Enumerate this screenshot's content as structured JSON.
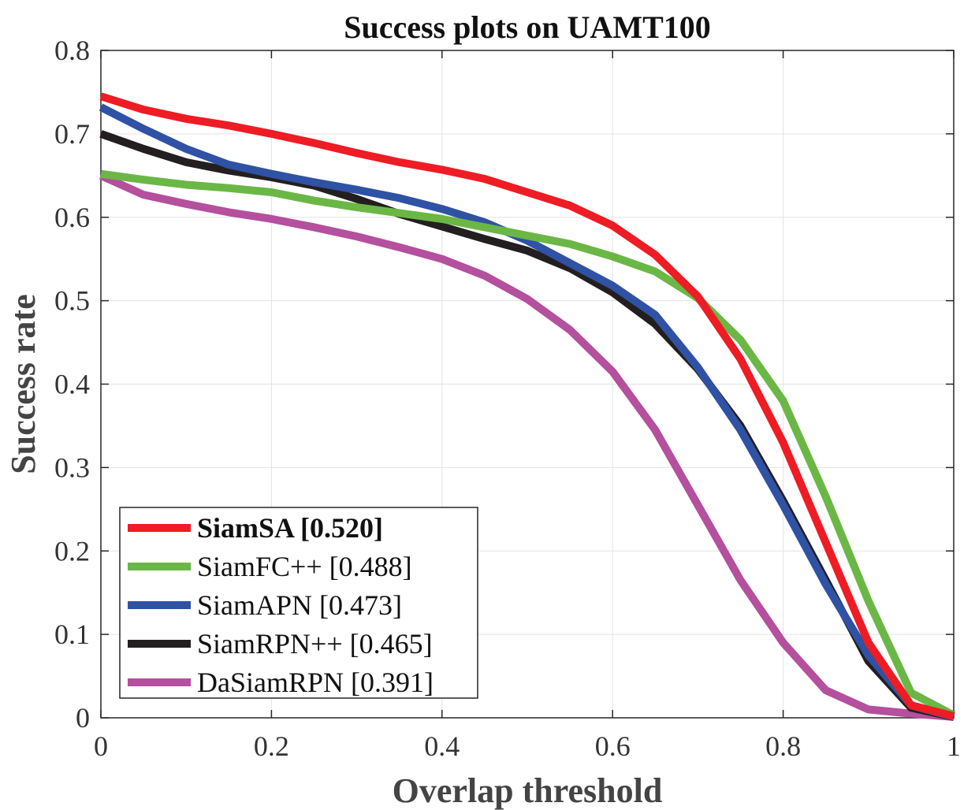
{
  "chart_data": {
    "type": "line",
    "title": "Success plots on UAMT100",
    "xlabel": "Overlap threshold",
    "ylabel": "Success rate",
    "xlim": [
      0,
      1
    ],
    "ylim": [
      0,
      0.8
    ],
    "xticks": [
      0,
      0.2,
      0.4,
      0.6,
      0.8,
      1
    ],
    "xtick_labels": [
      "0",
      "0.2",
      "0.4",
      "0.6",
      "0.8",
      "1"
    ],
    "yticks": [
      0,
      0.1,
      0.2,
      0.3,
      0.4,
      0.5,
      0.6,
      0.7,
      0.8
    ],
    "ytick_labels": [
      "0",
      "0.1",
      "0.2",
      "0.3",
      "0.4",
      "0.5",
      "0.6",
      "0.7",
      "0.8"
    ],
    "grid": true,
    "legend_position": "bottom-left",
    "x": [
      0,
      0.05,
      0.1,
      0.15,
      0.2,
      0.25,
      0.3,
      0.35,
      0.4,
      0.45,
      0.5,
      0.55,
      0.6,
      0.65,
      0.7,
      0.75,
      0.8,
      0.85,
      0.9,
      0.95,
      1
    ],
    "series": [
      {
        "name": "SiamSA [0.520]",
        "color": "#ee1c25",
        "bold": true,
        "values": [
          0.745,
          0.729,
          0.718,
          0.71,
          0.7,
          0.689,
          0.677,
          0.666,
          0.657,
          0.646,
          0.63,
          0.614,
          0.59,
          0.555,
          0.505,
          0.43,
          0.33,
          0.21,
          0.09,
          0.015,
          0.002
        ]
      },
      {
        "name": "SiamFC++ [0.488]",
        "color": "#6ab746",
        "bold": false,
        "values": [
          0.652,
          0.645,
          0.639,
          0.635,
          0.63,
          0.62,
          0.612,
          0.605,
          0.598,
          0.588,
          0.578,
          0.568,
          0.553,
          0.535,
          0.503,
          0.453,
          0.38,
          0.265,
          0.14,
          0.03,
          0.003
        ]
      },
      {
        "name": "SiamAPN [0.473]",
        "color": "#2f52a4",
        "bold": false,
        "values": [
          0.732,
          0.706,
          0.682,
          0.663,
          0.652,
          0.642,
          0.633,
          0.623,
          0.61,
          0.594,
          0.572,
          0.545,
          0.518,
          0.483,
          0.42,
          0.345,
          0.255,
          0.16,
          0.075,
          0.015,
          0.001
        ]
      },
      {
        "name": "SiamRPN++ [0.465]",
        "color": "#231f20",
        "bold": false,
        "values": [
          0.7,
          0.682,
          0.666,
          0.656,
          0.648,
          0.638,
          0.622,
          0.604,
          0.589,
          0.574,
          0.56,
          0.539,
          0.51,
          0.472,
          0.418,
          0.35,
          0.26,
          0.165,
          0.068,
          0.012,
          0.001
        ]
      },
      {
        "name": "DaSiamRPN [0.391]",
        "color": "#b4509d",
        "bold": false,
        "values": [
          0.65,
          0.627,
          0.616,
          0.606,
          0.598,
          0.588,
          0.577,
          0.564,
          0.55,
          0.53,
          0.502,
          0.465,
          0.415,
          0.345,
          0.255,
          0.165,
          0.09,
          0.033,
          0.01,
          0.005,
          0.001
        ]
      }
    ]
  }
}
